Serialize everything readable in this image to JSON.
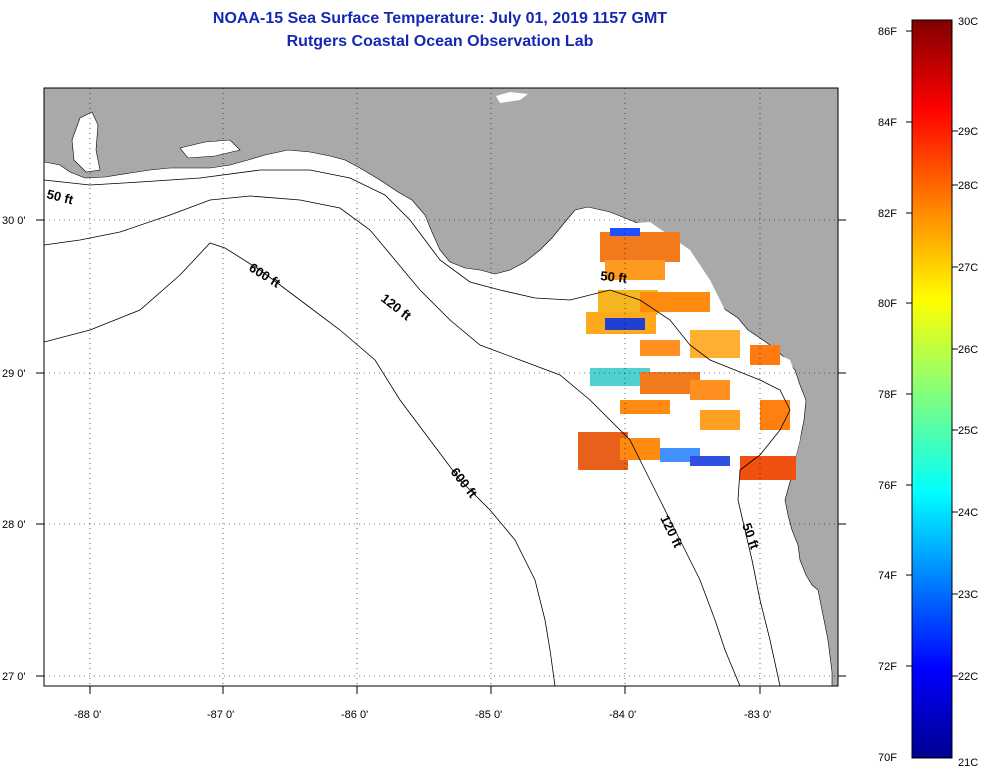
{
  "title": {
    "line1": "NOAA-15 Sea Surface Temperature:  July 01, 2019 1157 GMT",
    "line2": "Rutgers Coastal Ocean Observation Lab"
  },
  "map": {
    "longitude_labels": [
      "-88 0'",
      "-87 0'",
      "-86 0'",
      "-85 0'",
      "-84 0'",
      "-83 0'"
    ],
    "latitude_labels": [
      "30 0'",
      "29 0'",
      "28 0'",
      "27 0'"
    ],
    "depth_labels": {
      "d50_west": "50 ft",
      "d600_north": "600 ft",
      "d120_north": "120 ft",
      "d50_bigbend": "50 ft",
      "d600_south": "600 ft",
      "d120_south": "120 ft",
      "d50_south": "50 ft"
    },
    "colors": {
      "land": "#a9a9a9",
      "ocean": "#ffffff"
    }
  },
  "colorbar": {
    "fahrenheit_labels": [
      "86F",
      "84F",
      "82F",
      "80F",
      "78F",
      "76F",
      "74F",
      "72F",
      "70F"
    ],
    "celsius_labels": [
      "30C",
      "29C",
      "28C",
      "27C",
      "26C",
      "25C",
      "24C",
      "23C",
      "22C",
      "21C"
    ],
    "range_f": [
      70,
      86
    ],
    "range_c": [
      21,
      30
    ]
  }
}
